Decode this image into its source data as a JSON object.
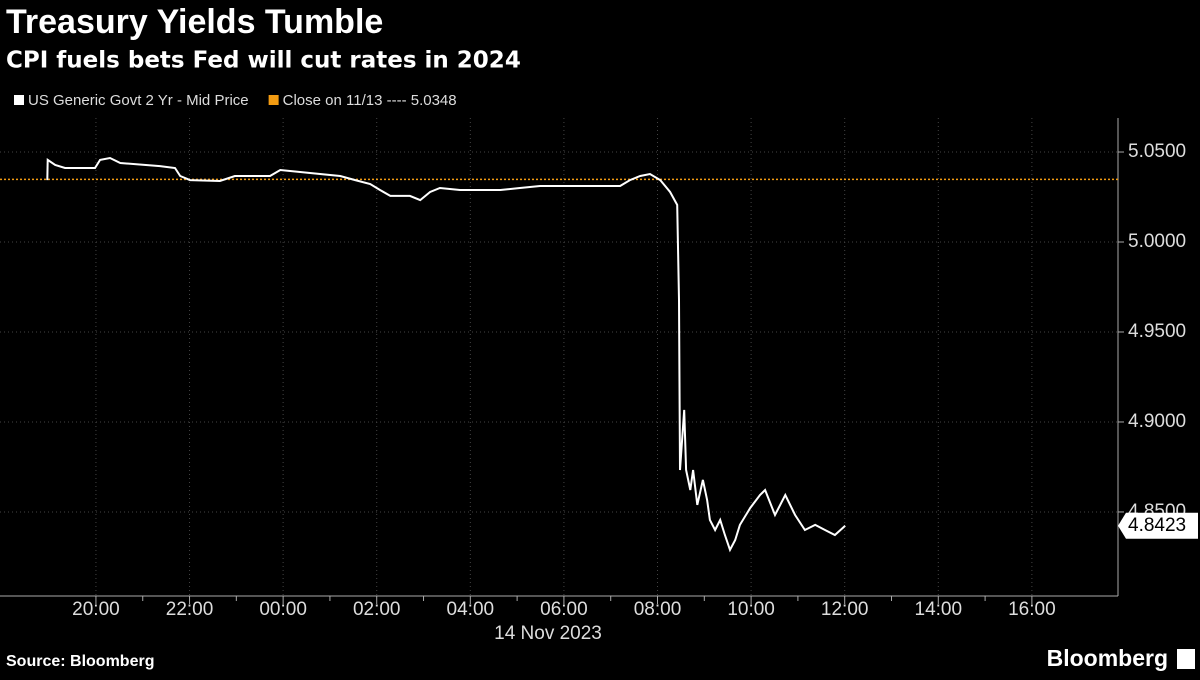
{
  "chart_data": {
    "type": "line",
    "title": "Treasury Yields Tumble",
    "subtitle": "CPI fuels bets Fed will cut rates in 2024",
    "x_label": "14 Nov 2023",
    "source": "Source: Bloomberg",
    "brand": "Bloomberg",
    "series": [
      {
        "name": "US Generic Govt 2 Yr - Mid Price",
        "color": "#ffffff",
        "x": [
          -5.04,
          -5.03,
          -4.87,
          -4.66,
          -4.02,
          -3.91,
          -3.7,
          -3.48,
          -2.63,
          -2.31,
          -2.2,
          -1.99,
          -1.35,
          -1.03,
          -0.28,
          -0.06,
          0.79,
          1.22,
          1.54,
          1.86,
          2.07,
          2.29,
          2.71,
          2.93,
          3.14,
          3.35,
          3.78,
          4.64,
          5.06,
          5.49,
          7.2,
          7.41,
          7.63,
          7.84,
          8.06,
          8.27,
          8.42,
          8.46,
          8.48,
          8.57,
          8.61,
          8.7,
          8.76,
          8.85,
          8.97,
          9.06,
          9.12,
          9.23,
          9.34,
          9.44,
          9.55,
          9.66,
          9.76,
          9.98,
          10.19,
          10.3,
          10.51,
          10.73,
          10.94,
          11.15,
          11.37,
          11.58,
          11.79,
          12.01
        ],
        "values": [
          5.0344,
          5.0456,
          5.0428,
          5.0411,
          5.0411,
          5.0456,
          5.0467,
          5.0439,
          5.0422,
          5.0411,
          5.0367,
          5.0344,
          5.0339,
          5.0367,
          5.0367,
          5.04,
          5.0378,
          5.0367,
          5.0344,
          5.0322,
          5.0289,
          5.0256,
          5.0256,
          5.0233,
          5.0278,
          5.03,
          5.0289,
          5.0289,
          5.03,
          5.0311,
          5.0311,
          5.0344,
          5.0367,
          5.0378,
          5.0344,
          5.0278,
          5.0206,
          4.9678,
          4.8733,
          4.9067,
          4.8733,
          4.8622,
          4.8733,
          4.8539,
          4.8678,
          4.8567,
          4.8456,
          4.84,
          4.8456,
          4.8372,
          4.8289,
          4.8344,
          4.8428,
          4.8522,
          4.8594,
          4.8622,
          4.8483,
          4.8594,
          4.8483,
          4.84,
          4.8428,
          4.84,
          4.8372,
          4.8423
        ]
      }
    ],
    "reference_line": {
      "name": "Close on 11/13 ---- 5.0348",
      "value": 5.0348,
      "color": "#f39c12"
    },
    "xlim": [
      -6.05,
      17.84
    ],
    "xticks": [
      {
        "value": -4,
        "label": "20:00"
      },
      {
        "value": -2,
        "label": "22:00"
      },
      {
        "value": 0,
        "label": "00:00"
      },
      {
        "value": 2,
        "label": "02:00"
      },
      {
        "value": 4,
        "label": "04:00"
      },
      {
        "value": 6,
        "label": "06:00"
      },
      {
        "value": 8,
        "label": "08:00"
      },
      {
        "value": 10,
        "label": "10:00"
      },
      {
        "value": 12,
        "label": "12:00"
      },
      {
        "value": 14,
        "label": "14:00"
      },
      {
        "value": 16,
        "label": "16:00"
      }
    ],
    "ylim": [
      4.8033,
      5.0689
    ],
    "yticks": [
      {
        "value": 4.85,
        "label": "4.8500"
      },
      {
        "value": 4.9,
        "label": "4.9000"
      },
      {
        "value": 4.95,
        "label": "4.9500"
      },
      {
        "value": 5.0,
        "label": "5.0000"
      },
      {
        "value": 5.05,
        "label": "5.0500"
      }
    ],
    "grid": true,
    "axis_side": "right"
  }
}
